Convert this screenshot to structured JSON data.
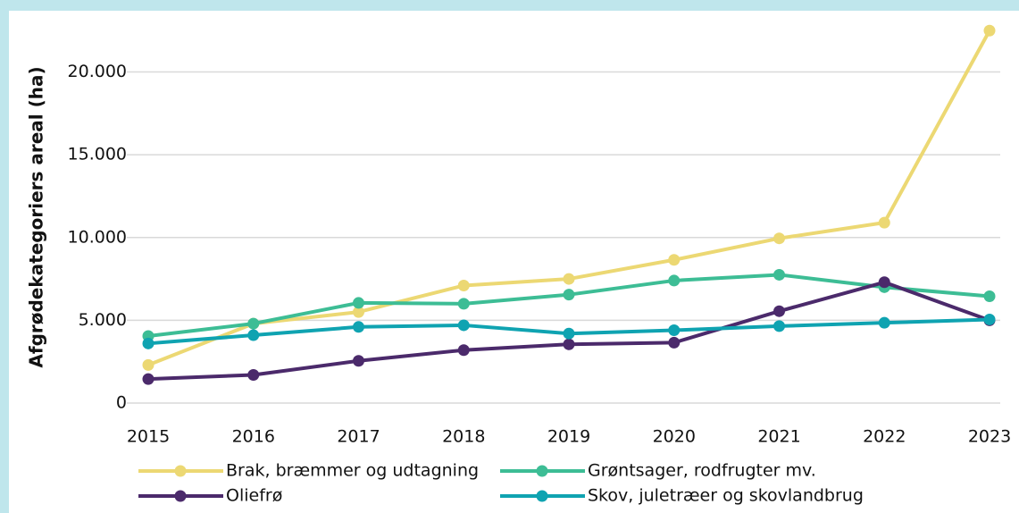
{
  "chart_data": {
    "type": "line",
    "y_label": "Afgrødekategoriers areal (ha)",
    "categories": [
      "2015",
      "2016",
      "2017",
      "2018",
      "2019",
      "2020",
      "2021",
      "2022",
      "2023"
    ],
    "series": [
      {
        "name": "Brak, bræmmer og udtagning",
        "color": "#ecd873",
        "values": [
          2300,
          4800,
          5500,
          7100,
          7500,
          8650,
          9950,
          10900,
          22500
        ]
      },
      {
        "name": "Grøntsager, rodfrugter mv.",
        "color": "#3dbd95",
        "values": [
          4050,
          4800,
          6050,
          6000,
          6550,
          7400,
          7750,
          7000,
          6450
        ]
      },
      {
        "name": "Oliefrø",
        "color": "#4b2a6b",
        "values": [
          1450,
          1700,
          2550,
          3200,
          3550,
          3650,
          5550,
          7300,
          5000
        ]
      },
      {
        "name": "Skov, juletræer og skovlandbrug",
        "color": "#0fa3b1",
        "values": [
          3600,
          4100,
          4600,
          4700,
          4200,
          4400,
          4650,
          4850,
          5050
        ]
      }
    ],
    "ylim": [
      0,
      23700
    ],
    "yticks": [
      0,
      {
        "value": 5000,
        "label": "5.000"
      },
      {
        "value": 10000,
        "label": "10.000"
      },
      {
        "value": 15000,
        "label": "15.000"
      },
      {
        "value": 20000,
        "label": "20.000"
      }
    ],
    "grid": true
  }
}
